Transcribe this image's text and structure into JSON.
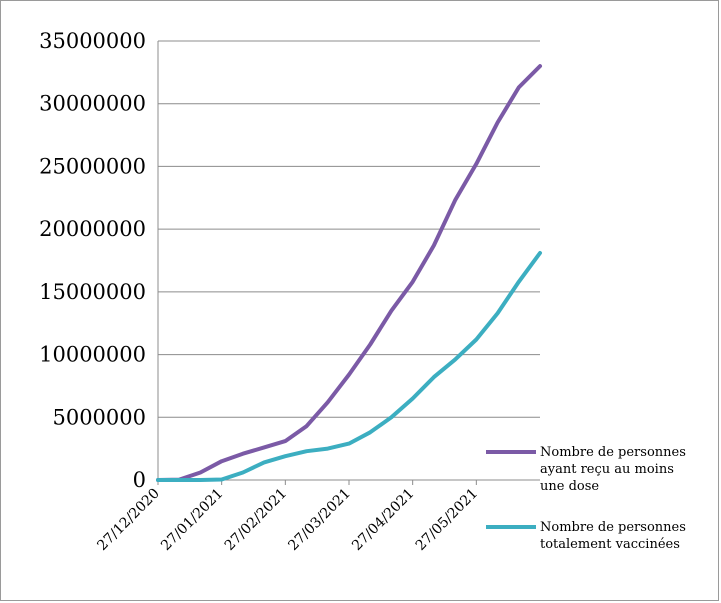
{
  "chart_data": {
    "type": "line",
    "title": "",
    "xlabel": "",
    "ylabel": "",
    "ylim": [
      0,
      35000000
    ],
    "yticks": [
      "0",
      "5000000",
      "10000000",
      "15000000",
      "20000000",
      "25000000",
      "30000000",
      "35000000"
    ],
    "x_tick_labels": [
      "27/12/2020",
      "27/01/2021",
      "27/02/2021",
      "27/03/2021",
      "27/04/2021",
      "27/05/2021"
    ],
    "grid": "horizontal",
    "legend_position": "right",
    "x": [
      "27/12/2020",
      "06/01/2021",
      "16/01/2021",
      "27/01/2021",
      "06/02/2021",
      "16/02/2021",
      "27/02/2021",
      "06/03/2021",
      "16/03/2021",
      "27/03/2021",
      "06/04/2021",
      "16/04/2021",
      "27/04/2021",
      "06/05/2021",
      "16/05/2021",
      "27/05/2021",
      "06/06/2021",
      "16/06/2021",
      "27/06/2021"
    ],
    "series": [
      {
        "name": "Nombre de personnes ayant reçu au moins une dose",
        "color": "#7b5aa6",
        "values": [
          0,
          30000,
          600000,
          1500000,
          2100000,
          2600000,
          3100000,
          4300000,
          6200000,
          8400000,
          10800000,
          13500000,
          15800000,
          18700000,
          22300000,
          25200000,
          28500000,
          31300000,
          33000000
        ]
      },
      {
        "name": "Nombre de personnes totalement vaccinées",
        "color": "#3caec1",
        "values": [
          0,
          0,
          0,
          40000,
          600000,
          1400000,
          1900000,
          2300000,
          2500000,
          2900000,
          3800000,
          5000000,
          6500000,
          8200000,
          9600000,
          11200000,
          13300000,
          15800000,
          18100000
        ]
      }
    ]
  }
}
